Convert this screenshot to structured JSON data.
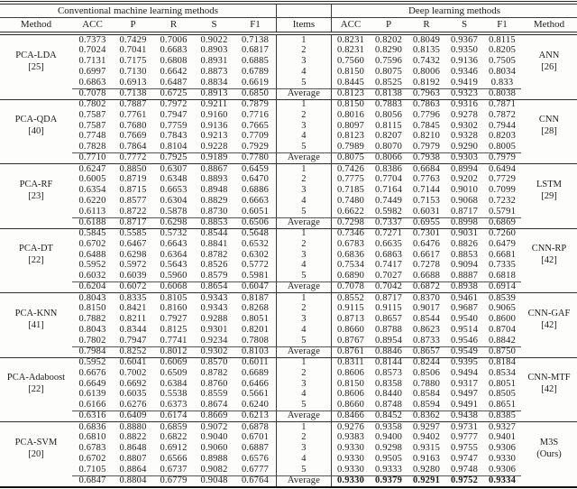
{
  "table": {
    "header": {
      "left_section": "Conventional machine learning methods",
      "right_section": "Deep learning methods",
      "col_method_left": "Method",
      "metrics": [
        "ACC",
        "P",
        "R",
        "S",
        "F1"
      ],
      "col_items": "Items",
      "col_method_right": "Method",
      "average_label": "Average"
    },
    "groups": [
      {
        "left_method": {
          "name": "PCA-LDA",
          "ref": "[25]"
        },
        "right_method": {
          "name": "ANN",
          "ref": "[26]"
        },
        "items": [
          "1",
          "2",
          "3",
          "4",
          "5"
        ],
        "left_rows": [
          [
            "0.7373",
            "0.7429",
            "0.7006",
            "0.9022",
            "0.7138"
          ],
          [
            "0.7024",
            "0.7041",
            "0.6683",
            "0.8903",
            "0.6817"
          ],
          [
            "0.7131",
            "0.7175",
            "0.6808",
            "0.8931",
            "0.6885"
          ],
          [
            "0.6997",
            "0.7130",
            "0.6642",
            "0.8873",
            "0.6789"
          ],
          [
            "0.6863",
            "0.6913",
            "0.6487",
            "0.8834",
            "0.6619"
          ]
        ],
        "left_avg": [
          "0.7078",
          "0.7138",
          "0.6725",
          "0.8913",
          "0.6850"
        ],
        "right_rows": [
          [
            "0.8231",
            "0.8202",
            "0.8049",
            "0.9367",
            "0.8115"
          ],
          [
            "0.8231",
            "0.8290",
            "0.8135",
            "0.9350",
            "0.8205"
          ],
          [
            "0.7560",
            "0.7596",
            "0.7432",
            "0.9136",
            "0.7505"
          ],
          [
            "0.8150",
            "0.8075",
            "0.8006",
            "0.9346",
            "0.8034"
          ],
          [
            "0.8445",
            "0.8525",
            "0.8192",
            "0.9419",
            "0.833"
          ]
        ],
        "right_avg": [
          "0.8123",
          "0.8138",
          "0.7963",
          "0.9323",
          "0.8038"
        ],
        "right_avg_bold": false
      },
      {
        "left_method": {
          "name": "PCA-QDA",
          "ref": "[40]"
        },
        "right_method": {
          "name": "CNN",
          "ref": "[28]"
        },
        "items": [
          "1",
          "2",
          "3",
          "4",
          "5"
        ],
        "left_rows": [
          [
            "0.7802",
            "0.7887",
            "0.7972",
            "0.9211",
            "0.7879"
          ],
          [
            "0.7587",
            "0.7761",
            "0.7947",
            "0.9160",
            "0.7716"
          ],
          [
            "0.7587",
            "0.7680",
            "0.7759",
            "0.9136",
            "0.7665"
          ],
          [
            "0.7748",
            "0.7669",
            "0.7843",
            "0.9213",
            "0.7709"
          ],
          [
            "0.7828",
            "0.7864",
            "0.8104",
            "0.9228",
            "0.7929"
          ]
        ],
        "left_avg": [
          "0.7710",
          "0.7772",
          "0.7925",
          "0.9189",
          "0.7780"
        ],
        "right_rows": [
          [
            "0.8150",
            "0.7883",
            "0.7863",
            "0.9316",
            "0.7871"
          ],
          [
            "0.8016",
            "0.8056",
            "0.7796",
            "0.9278",
            "0.7872"
          ],
          [
            "0.8097",
            "0.8115",
            "0.7845",
            "0.9302",
            "0.7944"
          ],
          [
            "0.8123",
            "0.8207",
            "0.8210",
            "0.9328",
            "0.8203"
          ],
          [
            "0.7989",
            "0.8070",
            "0.7979",
            "0.9290",
            "0.8005"
          ]
        ],
        "right_avg": [
          "0.8075",
          "0.8066",
          "0.7938",
          "0.9303",
          "0.7979"
        ],
        "right_avg_bold": false
      },
      {
        "left_method": {
          "name": "PCA-RF",
          "ref": "[23]"
        },
        "right_method": {
          "name": "LSTM",
          "ref": "[29]"
        },
        "items": [
          "1",
          "2",
          "3",
          "4",
          "5"
        ],
        "left_rows": [
          [
            "0.6247",
            "0.8850",
            "0.6307",
            "0.8867",
            "0.6459"
          ],
          [
            "0.6005",
            "0.8719",
            "0.6348",
            "0.8893",
            "0.6470"
          ],
          [
            "0.6354",
            "0.8715",
            "0.6653",
            "0.8948",
            "0.6886"
          ],
          [
            "0.6220",
            "0.8577",
            "0.6304",
            "0.8829",
            "0.6663"
          ],
          [
            "0.6113",
            "0.8722",
            "0.5878",
            "0.8730",
            "0.6051"
          ]
        ],
        "left_avg": [
          "0.6188",
          "0.8717",
          "0.6298",
          "0.8853",
          "0.6506"
        ],
        "right_rows": [
          [
            "0.7426",
            "0.8386",
            "0.6684",
            "0.8994",
            "0.6494"
          ],
          [
            "0.7775",
            "0.7704",
            "0.7763",
            "0.9202",
            "0.7729"
          ],
          [
            "0.7185",
            "0.7164",
            "0.7144",
            "0.9010",
            "0.7099"
          ],
          [
            "0.7480",
            "0.7449",
            "0.7153",
            "0.9068",
            "0.7232"
          ],
          [
            "0.6622",
            "0.5982",
            "0.6031",
            "0.8717",
            "0.5791"
          ]
        ],
        "right_avg": [
          "0.7298",
          "0.7337",
          "0.6955",
          "0.8998",
          "0.6869"
        ],
        "right_avg_bold": false
      },
      {
        "left_method": {
          "name": "PCA-DT",
          "ref": "[22]"
        },
        "right_method": {
          "name": "CNN-RP",
          "ref": "[42]"
        },
        "items": [
          "1",
          "2",
          "3",
          "4",
          "5"
        ],
        "left_rows": [
          [
            "0.5845",
            "0.5585",
            "0.5732",
            "0.8544",
            "0.5648"
          ],
          [
            "0.6702",
            "0.6467",
            "0.6643",
            "0.8841",
            "0.6532"
          ],
          [
            "0.6488",
            "0.6298",
            "0.6364",
            "0.8782",
            "0.6302"
          ],
          [
            "0.5952",
            "0.5972",
            "0.5643",
            "0.8526",
            "0.5772"
          ],
          [
            "0.6032",
            "0.6039",
            "0.5960",
            "0.8579",
            "0.5981"
          ]
        ],
        "left_avg": [
          "0.6204",
          "0.6072",
          "0.6068",
          "0.8654",
          "0.6047"
        ],
        "right_rows": [
          [
            "0.7346",
            "0.7271",
            "0.7301",
            "0.9031",
            "0.7260"
          ],
          [
            "0.6783",
            "0.6635",
            "0.6476",
            "0.8826",
            "0.6479"
          ],
          [
            "0.6836",
            "0.6863",
            "0.6617",
            "0.8853",
            "0.6681"
          ],
          [
            "0.7534",
            "0.7417",
            "0.7278",
            "0.9094",
            "0.7335"
          ],
          [
            "0.6890",
            "0.7027",
            "0.6688",
            "0.8887",
            "0.6818"
          ]
        ],
        "right_avg": [
          "0.7078",
          "0.7042",
          "0.6872",
          "0.8938",
          "0.6914"
        ],
        "right_avg_bold": false
      },
      {
        "left_method": {
          "name": "PCA-KNN",
          "ref": "[41]"
        },
        "right_method": {
          "name": "CNN-GAF",
          "ref": "[42]"
        },
        "items": [
          "1",
          "2",
          "3",
          "4",
          "5"
        ],
        "left_rows": [
          [
            "0.8043",
            "0.8335",
            "0.8105",
            "0.9343",
            "0.8187"
          ],
          [
            "0.8150",
            "0.8421",
            "0.8160",
            "0.9343",
            "0.8268"
          ],
          [
            "0.7882",
            "0.8211",
            "0.7927",
            "0.9288",
            "0.8051"
          ],
          [
            "0.8043",
            "0.8344",
            "0.8125",
            "0.9301",
            "0.8201"
          ],
          [
            "0.7802",
            "0.7947",
            "0.7741",
            "0.9234",
            "0.7808"
          ]
        ],
        "left_avg": [
          "0.7984",
          "0.8252",
          "0.8012",
          "0.9302",
          "0.8103"
        ],
        "right_rows": [
          [
            "0.8552",
            "0.8717",
            "0.8370",
            "0.9461",
            "0.8539"
          ],
          [
            "0.9115",
            "0.9115",
            "0.9017",
            "0.9687",
            "0.9065"
          ],
          [
            "0.8713",
            "0.8657",
            "0.8544",
            "0.9540",
            "0.8600"
          ],
          [
            "0.8660",
            "0.8788",
            "0.8623",
            "0.9514",
            "0.8704"
          ],
          [
            "0.8767",
            "0.8954",
            "0.8733",
            "0.9546",
            "0.8842"
          ]
        ],
        "right_avg": [
          "0.8761",
          "0.8846",
          "0.8657",
          "0.9549",
          "0.8750"
        ],
        "right_avg_bold": false
      },
      {
        "left_method": {
          "name": "PCA-Adaboost",
          "ref": "[22]"
        },
        "right_method": {
          "name": "CNN-MTF",
          "ref": "[42]"
        },
        "items": [
          "1",
          "2",
          "3",
          "4",
          "5"
        ],
        "left_rows": [
          [
            "0.5952",
            "0.6041",
            "0.6069",
            "0.8570",
            "0.6011"
          ],
          [
            "0.6676",
            "0.7002",
            "0.6509",
            "0.8782",
            "0.6689"
          ],
          [
            "0.6649",
            "0.6692",
            "0.6384",
            "0.8760",
            "0.6466"
          ],
          [
            "0.6139",
            "0.6035",
            "0.5538",
            "0.8559",
            "0.5661"
          ],
          [
            "0.6166",
            "0.6276",
            "0.6373",
            "0.8674",
            "0.6240"
          ]
        ],
        "left_avg": [
          "0.6316",
          "0.6409",
          "0.6174",
          "0.8669",
          "0.6213"
        ],
        "right_rows": [
          [
            "0.8311",
            "0.8144",
            "0.8244",
            "0.9395",
            "0.8184"
          ],
          [
            "0.8606",
            "0.8573",
            "0.8506",
            "0.9494",
            "0.8534"
          ],
          [
            "0.8150",
            "0.8358",
            "0.7880",
            "0.9317",
            "0.8051"
          ],
          [
            "0.8606",
            "0.8440",
            "0.8584",
            "0.9497",
            "0.8505"
          ],
          [
            "0.8660",
            "0.8748",
            "0.8594",
            "0.9491",
            "0.8651"
          ]
        ],
        "right_avg": [
          "0.8466",
          "0.8452",
          "0.8362",
          "0.9438",
          "0.8385"
        ],
        "right_avg_bold": false
      },
      {
        "left_method": {
          "name": "PCA-SVM",
          "ref": "[20]"
        },
        "right_method": {
          "name": "M3S",
          "ref": "(Ours)"
        },
        "items": [
          "1",
          "2",
          "3",
          "4",
          "5"
        ],
        "left_rows": [
          [
            "0.6836",
            "0.8880",
            "0.6859",
            "0.9072",
            "0.6878"
          ],
          [
            "0.6810",
            "0.8822",
            "0.6822",
            "0.9040",
            "0.6701"
          ],
          [
            "0.6783",
            "0.8648",
            "0.6912",
            "0.9060",
            "0.6887"
          ],
          [
            "0.6702",
            "0.8807",
            "0.6566",
            "0.8988",
            "0.6576"
          ],
          [
            "0.7105",
            "0.8864",
            "0.6737",
            "0.9082",
            "0.6777"
          ]
        ],
        "left_avg": [
          "0.6847",
          "0.8804",
          "0.6779",
          "0.9048",
          "0.6764"
        ],
        "right_rows": [
          [
            "0.9276",
            "0.9358",
            "0.9297",
            "0.9731",
            "0.9327"
          ],
          [
            "0.9383",
            "0.9400",
            "0.9402",
            "0.9777",
            "0.9401"
          ],
          [
            "0.9330",
            "0.9298",
            "0.9315",
            "0.9755",
            "0.9306"
          ],
          [
            "0.9330",
            "0.9505",
            "0.9163",
            "0.9747",
            "0.9330"
          ],
          [
            "0.9330",
            "0.9333",
            "0.9280",
            "0.9748",
            "0.9306"
          ]
        ],
        "right_avg": [
          "0.9330",
          "0.9379",
          "0.9291",
          "0.9752",
          "0.9334"
        ],
        "right_avg_bold": true
      }
    ]
  }
}
